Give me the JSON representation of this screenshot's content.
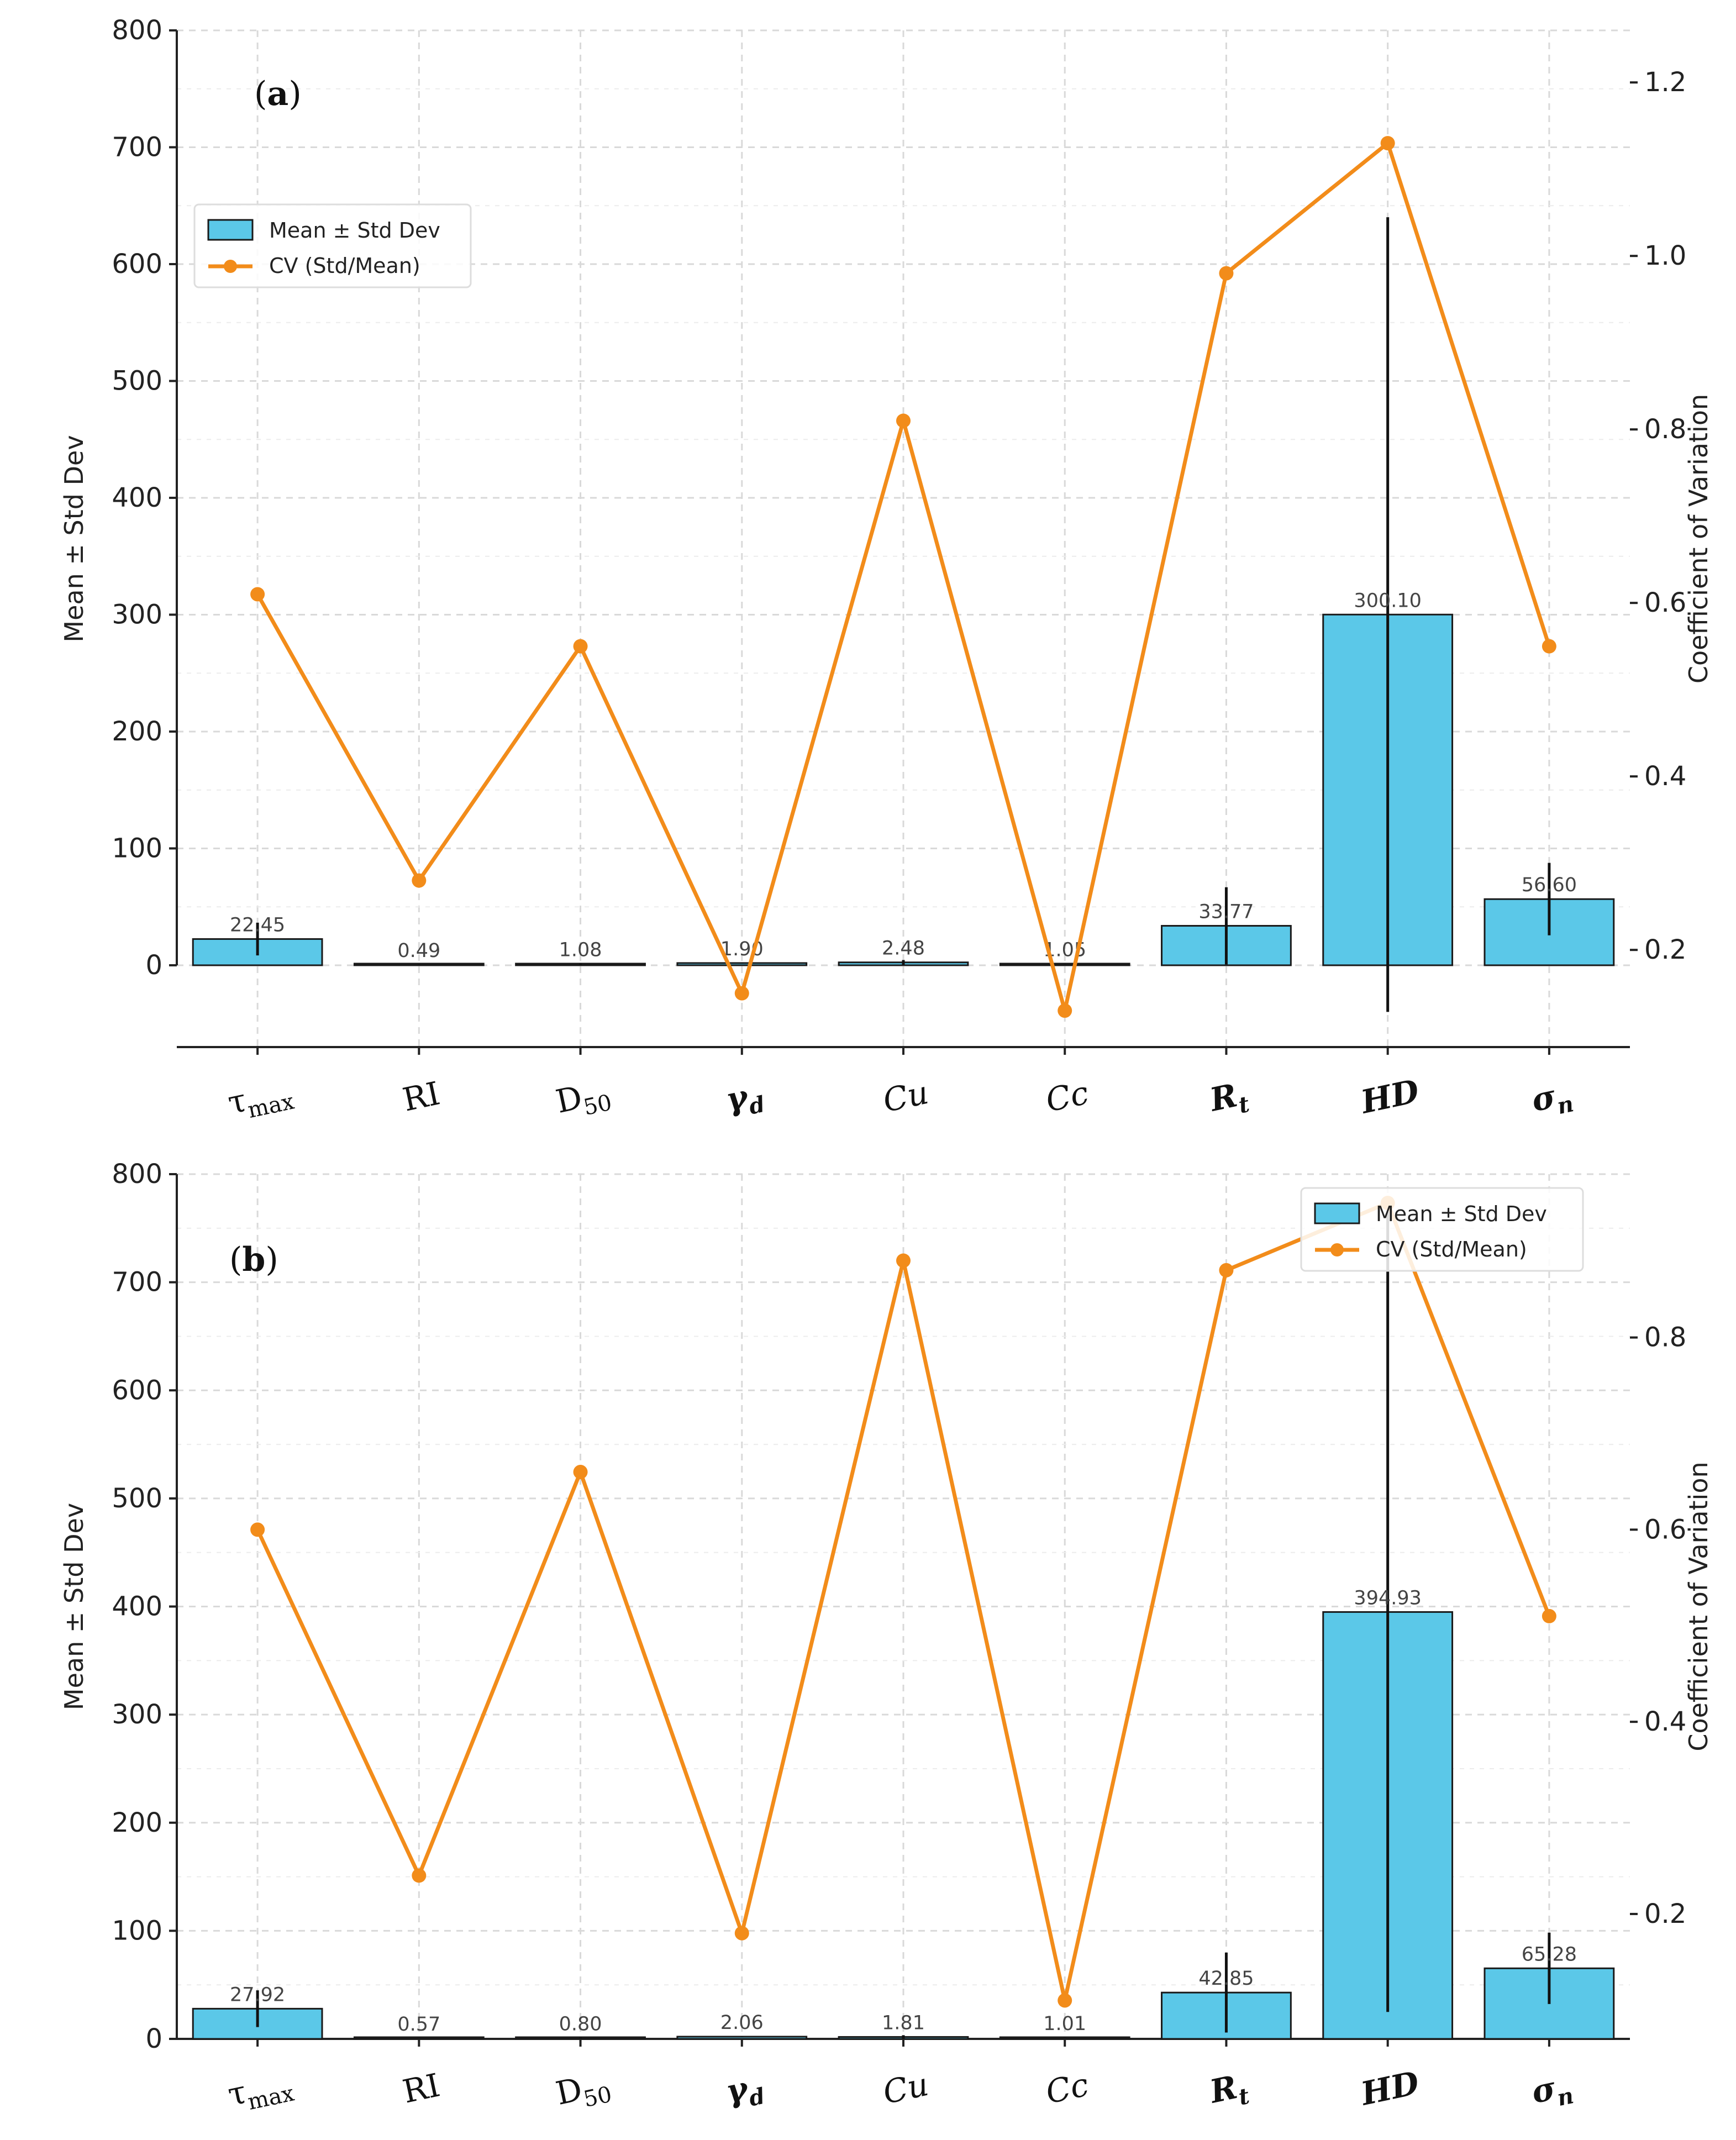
{
  "colors": {
    "bar_fill": "#5bc8e8",
    "bar_edge": "#1a1a1a",
    "cv_line": "#f28c1a",
    "error_bar": "#111111",
    "grid": "#d9d9d9"
  },
  "chart_data": [
    {
      "panel_label": "(a)",
      "type": "bar",
      "categories": [
        "τmax",
        "RI",
        "D50",
        "γd",
        "Cu",
        "Cc",
        "Rt",
        "HD",
        "σn"
      ],
      "series": [
        {
          "name": "Mean ± Std Dev",
          "type": "bar",
          "axis": "left",
          "values": [
            22.45,
            0.49,
            1.08,
            1.9,
            2.48,
            1.05,
            33.77,
            300.1,
            56.6
          ],
          "std": [
            14,
            0.14,
            0.6,
            0.28,
            2.0,
            0.14,
            33,
            340,
            31
          ],
          "labels": [
            "22.45",
            "0.49",
            "1.08",
            "1.90",
            "2.48",
            "1.05",
            "33.77",
            "300.10",
            "56.60"
          ]
        },
        {
          "name": "CV (Std/Mean)",
          "type": "line",
          "axis": "right",
          "values": [
            0.61,
            0.28,
            0.55,
            0.15,
            0.81,
            0.13,
            0.98,
            1.13,
            0.55
          ]
        }
      ],
      "title": "",
      "xlabel": "",
      "ylabel": "Mean ± Std Dev",
      "y2label": "Coefficient of Variation",
      "ylim": [
        -70,
        800
      ],
      "yticks": [
        "0",
        "100",
        "200",
        "300",
        "400",
        "500",
        "600",
        "700",
        "800"
      ],
      "y2lim": [
        0.088,
        1.26
      ],
      "y2ticks": [
        "0.2",
        "0.4",
        "0.6",
        "0.8",
        "1.0",
        "1.2"
      ],
      "legend": "upper-left",
      "grid": true
    },
    {
      "panel_label": "(b)",
      "type": "bar",
      "categories": [
        "τmax",
        "RI",
        "D50",
        "γd",
        "Cu",
        "Cc",
        "Rt",
        "HD",
        "σn"
      ],
      "series": [
        {
          "name": "Mean ± Std Dev",
          "type": "bar",
          "axis": "left",
          "values": [
            27.92,
            0.57,
            0.8,
            2.06,
            1.81,
            1.01,
            42.85,
            394.93,
            65.28
          ],
          "std": [
            17,
            0.14,
            0.5,
            0.38,
            1.6,
            0.12,
            37,
            370,
            33
          ],
          "labels": [
            "27.92",
            "0.57",
            "0.80",
            "2.06",
            "1.81",
            "1.01",
            "42.85",
            "394.93",
            "65.28"
          ]
        },
        {
          "name": "CV (Std/Mean)",
          "type": "line",
          "axis": "right",
          "values": [
            0.6,
            0.24,
            0.66,
            0.18,
            0.88,
            0.11,
            0.87,
            0.94,
            0.51
          ]
        }
      ],
      "title": "",
      "xlabel": "",
      "ylabel": "Mean ± Std Dev",
      "y2label": "Coefficient of Variation",
      "ylim": [
        0,
        800
      ],
      "yticks": [
        "0",
        "100",
        "200",
        "300",
        "400",
        "500",
        "600",
        "700",
        "800"
      ],
      "y2lim": [
        0.07,
        0.97
      ],
      "y2ticks": [
        "0.2",
        "0.4",
        "0.6",
        "0.8"
      ],
      "legend": "upper-right",
      "grid": true
    }
  ]
}
